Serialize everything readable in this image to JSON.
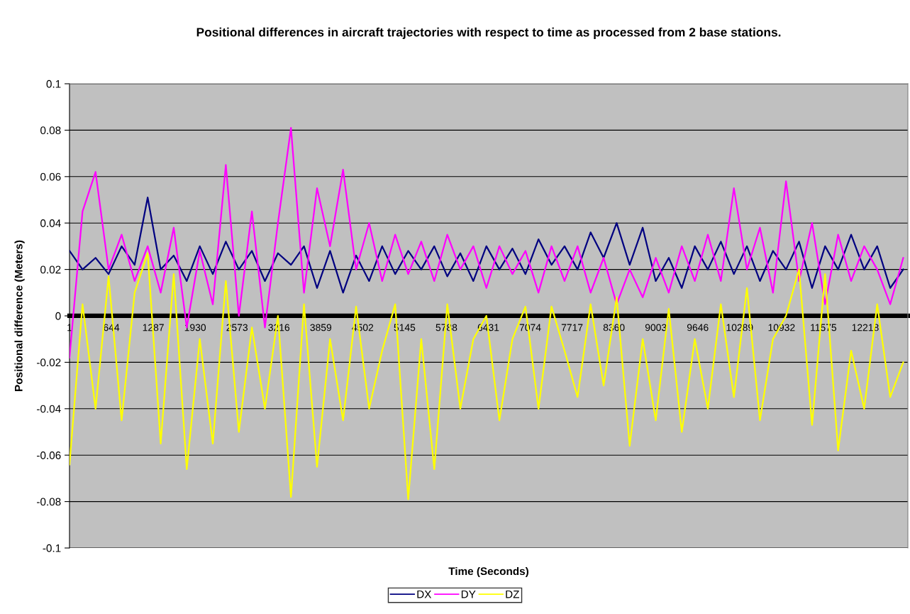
{
  "chart_data": {
    "type": "line",
    "title": "Positional differences in aircraft trajectories with respect to time as processed from 2 base stations.",
    "xlabel": "Time (Seconds)",
    "ylabel": "Positional difference (Meters)",
    "x": [
      1,
      201,
      401,
      601,
      801,
      1001,
      1201,
      1401,
      1601,
      1801,
      2001,
      2201,
      2401,
      2601,
      2801,
      3001,
      3201,
      3401,
      3601,
      3801,
      4001,
      4201,
      4401,
      4601,
      4801,
      5001,
      5201,
      5401,
      5601,
      5801,
      6001,
      6201,
      6401,
      6601,
      6801,
      7001,
      7201,
      7401,
      7601,
      7801,
      8001,
      8201,
      8401,
      8601,
      8801,
      9001,
      9201,
      9401,
      9601,
      9801,
      10001,
      10201,
      10401,
      10601,
      10801,
      11001,
      11201,
      11401,
      11601,
      11801,
      12001,
      12201,
      12401,
      12601,
      12801
    ],
    "series": [
      {
        "name": "DX",
        "color": "#000080",
        "values": [
          0.028,
          0.02,
          0.025,
          0.018,
          0.03,
          0.022,
          0.051,
          0.02,
          0.026,
          0.015,
          0.03,
          0.018,
          0.032,
          0.02,
          0.028,
          0.015,
          0.027,
          0.022,
          0.03,
          0.012,
          0.028,
          0.01,
          0.026,
          0.015,
          0.03,
          0.018,
          0.028,
          0.02,
          0.03,
          0.017,
          0.027,
          0.015,
          0.03,
          0.02,
          0.029,
          0.018,
          0.033,
          0.022,
          0.03,
          0.02,
          0.036,
          0.025,
          0.04,
          0.022,
          0.038,
          0.015,
          0.025,
          0.012,
          0.03,
          0.02,
          0.032,
          0.018,
          0.03,
          0.015,
          0.028,
          0.02,
          0.032,
          0.012,
          0.03,
          0.02,
          0.035,
          0.02,
          0.03,
          0.012,
          0.02
        ]
      },
      {
        "name": "DY",
        "color": "#ff00ff",
        "values": [
          -0.018,
          0.045,
          0.062,
          0.02,
          0.035,
          0.015,
          0.03,
          0.01,
          0.038,
          -0.005,
          0.028,
          0.005,
          0.065,
          0.0,
          0.045,
          -0.005,
          0.04,
          0.081,
          0.01,
          0.055,
          0.03,
          0.063,
          0.02,
          0.04,
          0.015,
          0.035,
          0.018,
          0.032,
          0.015,
          0.035,
          0.02,
          0.03,
          0.012,
          0.03,
          0.018,
          0.028,
          0.01,
          0.03,
          0.015,
          0.03,
          0.01,
          0.025,
          0.005,
          0.02,
          0.008,
          0.025,
          0.01,
          0.03,
          0.015,
          0.035,
          0.015,
          0.055,
          0.02,
          0.038,
          0.01,
          0.058,
          0.015,
          0.04,
          0.005,
          0.035,
          0.015,
          0.03,
          0.02,
          0.005,
          0.025
        ]
      },
      {
        "name": "DZ",
        "color": "#ffff00",
        "values": [
          -0.064,
          0.005,
          -0.04,
          0.017,
          -0.045,
          0.01,
          0.027,
          -0.055,
          0.018,
          -0.066,
          -0.01,
          -0.055,
          0.015,
          -0.05,
          -0.005,
          -0.04,
          0.0,
          -0.078,
          0.005,
          -0.065,
          -0.01,
          -0.045,
          0.004,
          -0.04,
          -0.015,
          0.005,
          -0.079,
          -0.01,
          -0.066,
          0.005,
          -0.04,
          -0.01,
          0.0,
          -0.045,
          -0.01,
          0.004,
          -0.04,
          0.004,
          -0.015,
          -0.035,
          0.005,
          -0.03,
          0.008,
          -0.056,
          -0.01,
          -0.045,
          0.003,
          -0.05,
          -0.01,
          -0.04,
          0.005,
          -0.035,
          0.012,
          -0.045,
          -0.01,
          0.0,
          0.02,
          -0.047,
          0.018,
          -0.058,
          -0.015,
          -0.04,
          0.005,
          -0.035,
          -0.02
        ]
      }
    ],
    "xlim": [
      1,
      12872
    ],
    "xticks": [
      1,
      644,
      1287,
      1930,
      2573,
      3216,
      3859,
      4502,
      5145,
      5788,
      6431,
      7074,
      7717,
      8360,
      9003,
      9646,
      10289,
      10932,
      11575,
      12218
    ],
    "ylim": [
      -0.1,
      0.1
    ],
    "yticks": [
      -0.1,
      -0.08,
      -0.06,
      -0.04,
      -0.02,
      0,
      0.02,
      0.04,
      0.06,
      0.08,
      0.1
    ],
    "grid": "y",
    "legend": "bottom",
    "line_style": "solid",
    "marker": "none"
  }
}
